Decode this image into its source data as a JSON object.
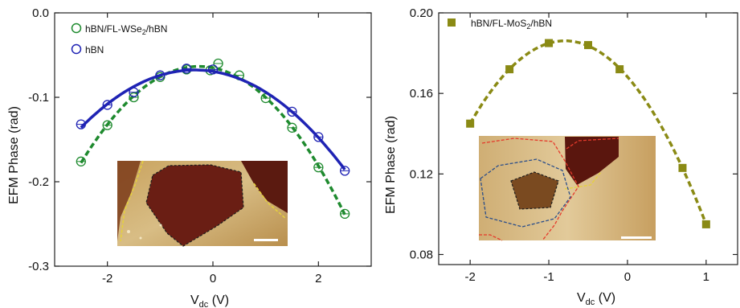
{
  "chart_data": [
    {
      "type": "line",
      "title": "",
      "xlabel": "V_dc (V)",
      "ylabel": "EFM Phase (rad)",
      "xlim": [
        -3,
        3
      ],
      "ylim": [
        -0.3,
        0.0
      ],
      "xticks": [
        -2,
        0,
        2
      ],
      "xtick_labels": [
        "-2",
        "0",
        "2"
      ],
      "yticks": [
        0.0,
        -0.1,
        -0.2,
        -0.3
      ],
      "ytick_labels": [
        "0.0",
        "-0.1",
        "-0.2",
        "-0.3"
      ],
      "grid": false,
      "legend_position": "top-left",
      "series": [
        {
          "name": "hBN/FL-WSe2/hBN",
          "color": "#1e8a2e",
          "marker": "open-circle",
          "line_style": "dashed",
          "x": [
            -2.5,
            -2.0,
            -1.5,
            -1.0,
            -0.5,
            -0.05,
            0.1,
            0.5,
            1.0,
            1.5,
            2.0,
            2.5
          ],
          "y": [
            -0.176,
            -0.133,
            -0.1,
            -0.076,
            -0.067,
            -0.068,
            -0.06,
            -0.074,
            -0.101,
            -0.136,
            -0.183,
            -0.238
          ]
        },
        {
          "name": "hBN",
          "color": "#1f23b4",
          "marker": "open-circle",
          "line_style": "solid",
          "x": [
            -2.5,
            -2.0,
            -1.5,
            -1.0,
            -0.5,
            0.0,
            1.5,
            2.0,
            2.5
          ],
          "y": [
            -0.132,
            -0.109,
            -0.094,
            -0.074,
            -0.066,
            -0.067,
            -0.117,
            -0.147,
            -0.187
          ]
        }
      ],
      "legend": [
        {
          "base": "hBN/FL-WSe",
          "sub": "2",
          "rest": "/hBN"
        },
        {
          "base": "hBN",
          "sub": "",
          "rest": ""
        }
      ],
      "inset": "afm-image"
    },
    {
      "type": "line",
      "title": "",
      "xlabel": "V_dc (V)",
      "ylabel": "EFM Phase (rad)",
      "xlim": [
        -2.4,
        1.4
      ],
      "ylim": [
        0.075,
        0.2
      ],
      "xticks": [
        -2,
        -1,
        0,
        1
      ],
      "xtick_labels": [
        "-2",
        "-1",
        "0",
        "1"
      ],
      "yticks": [
        0.08,
        0.12,
        0.16,
        0.2
      ],
      "ytick_labels": [
        "0.08",
        "0.12",
        "0.16",
        "0.20"
      ],
      "grid": false,
      "legend_position": "top-left",
      "series": [
        {
          "name": "hBN/FL-MoS2/hBN",
          "color": "#8a8a14",
          "marker": "filled-square",
          "line_style": "dashed",
          "x": [
            -2.0,
            -1.5,
            -1.0,
            -0.5,
            -0.1,
            0.7,
            1.0
          ],
          "y": [
            0.145,
            0.172,
            0.185,
            0.184,
            0.172,
            0.123,
            0.095
          ]
        }
      ],
      "legend": [
        {
          "base": "hBN/FL-MoS",
          "sub": "2",
          "rest": "/hBN"
        }
      ],
      "inset": "afm-image"
    }
  ],
  "axis_label": {
    "base": "V",
    "sub": "dc",
    "rest": " (V)"
  },
  "y_axis_label": "EFM Phase (rad)"
}
